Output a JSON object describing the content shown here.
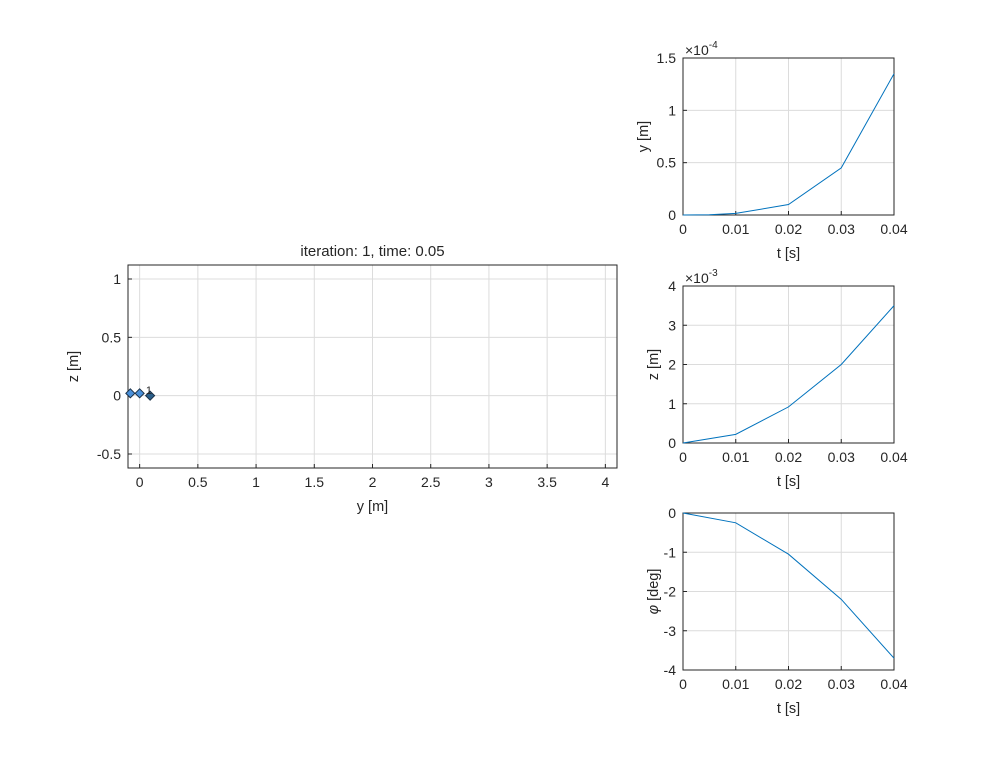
{
  "chart_data": [
    {
      "id": "main",
      "type": "scatter",
      "title": "iteration: 1, time: 0.05",
      "xlabel": "y [m]",
      "ylabel": "z [m]",
      "xlim": [
        -0.1,
        4.1
      ],
      "ylim": [
        -0.62,
        1.12
      ],
      "xticks": [
        0,
        0.5,
        1,
        1.5,
        2,
        2.5,
        3,
        3.5,
        4
      ],
      "xtick_labels": [
        "0",
        "0.5",
        "1",
        "1.5",
        "2",
        "2.5",
        "3",
        "3.5",
        "4"
      ],
      "yticks": [
        -0.5,
        0,
        0.5,
        1
      ],
      "ytick_labels": [
        "-0.5",
        "0",
        "0.5",
        "1"
      ],
      "grid": true,
      "points": [
        {
          "x": -0.08,
          "y": 0.02,
          "color": "#4a90d9"
        },
        {
          "x": 0.0,
          "y": 0.02,
          "color": "#4a90d9"
        },
        {
          "x": 0.09,
          "y": 0.0,
          "color": "#2b5f8a"
        }
      ],
      "point_label": "1",
      "point_label_x": 0.08,
      "point_label_y": 0.03
    },
    {
      "id": "y_vs_t",
      "type": "line",
      "xlabel": "t [s]",
      "ylabel": "y [m]",
      "exponent_label": "×10",
      "exponent": "-4",
      "xlim": [
        0,
        0.04
      ],
      "ylim": [
        0,
        1.5
      ],
      "xticks": [
        0,
        0.01,
        0.02,
        0.03,
        0.04
      ],
      "xtick_labels": [
        "0",
        "0.01",
        "0.02",
        "0.03",
        "0.04"
      ],
      "yticks": [
        0,
        0.5,
        1,
        1.5
      ],
      "ytick_labels": [
        "0",
        "0.5",
        "1",
        "1.5"
      ],
      "grid": true,
      "x": [
        0,
        0.005,
        0.01,
        0.02,
        0.03,
        0.04
      ],
      "y": [
        0,
        0.002,
        0.015,
        0.1,
        0.45,
        1.35
      ]
    },
    {
      "id": "z_vs_t",
      "type": "line",
      "xlabel": "t [s]",
      "ylabel": "z [m]",
      "exponent_label": "×10",
      "exponent": "-3",
      "xlim": [
        0,
        0.04
      ],
      "ylim": [
        0,
        4
      ],
      "xticks": [
        0,
        0.01,
        0.02,
        0.03,
        0.04
      ],
      "xtick_labels": [
        "0",
        "0.01",
        "0.02",
        "0.03",
        "0.04"
      ],
      "yticks": [
        0,
        1,
        2,
        3,
        4
      ],
      "ytick_labels": [
        "0",
        "1",
        "2",
        "3",
        "4"
      ],
      "grid": true,
      "x": [
        0,
        0.01,
        0.02,
        0.03,
        0.04
      ],
      "y": [
        0,
        0.22,
        0.92,
        2.0,
        3.5
      ]
    },
    {
      "id": "phi_vs_t",
      "type": "line",
      "xlabel": "t [s]",
      "ylabel_symbol": "φ",
      "ylabel": " [deg]",
      "xlim": [
        0,
        0.04
      ],
      "ylim": [
        -4,
        0
      ],
      "xticks": [
        0,
        0.01,
        0.02,
        0.03,
        0.04
      ],
      "xtick_labels": [
        "0",
        "0.01",
        "0.02",
        "0.03",
        "0.04"
      ],
      "yticks": [
        -4,
        -3,
        -2,
        -1,
        0
      ],
      "ytick_labels": [
        "-4",
        "-3",
        "-2",
        "-1",
        "0"
      ],
      "grid": true,
      "x": [
        0,
        0.01,
        0.02,
        0.03,
        0.04
      ],
      "y": [
        0,
        -0.25,
        -1.05,
        -2.2,
        -3.7
      ]
    }
  ],
  "colors": {
    "series": "#0072bd",
    "grid": "#dcdcdc",
    "axes": "#262626",
    "marker_light": "#4a90d9",
    "marker_dark": "#2b5f8a"
  }
}
